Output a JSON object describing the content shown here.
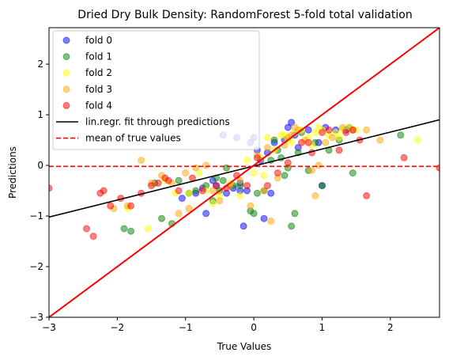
{
  "chart_data": {
    "type": "scatter",
    "title": "Dried Dry Bulk Density: RandomForest 5-fold total validation",
    "xlabel": "True Values",
    "ylabel": "Predictions",
    "xlim": [
      -3.0,
      2.72
    ],
    "ylim": [
      -3.0,
      2.72
    ],
    "xticks": [
      -3,
      -2,
      -1,
      0,
      1,
      2
    ],
    "yticks": [
      -3,
      -2,
      -1,
      0,
      1,
      2
    ],
    "xtick_labels": [
      "−3",
      "−2",
      "−1",
      "0",
      "1",
      "2"
    ],
    "ytick_labels": [
      "−3",
      "−2",
      "−1",
      "0",
      "1",
      "2"
    ],
    "grid": false,
    "legend_position": "top-left",
    "series": [
      {
        "name": "fold 0",
        "color": "#0000ff",
        "x": [
          -1.05,
          -0.85,
          -0.7,
          -0.55,
          -0.4,
          -0.3,
          -0.2,
          -0.15,
          -0.1,
          -0.05,
          0.0,
          0.05,
          0.1,
          0.15,
          0.2,
          0.3,
          0.45,
          0.55,
          0.65,
          0.8,
          0.95,
          1.05,
          1.2,
          1.35,
          -0.6,
          -0.2,
          0.25,
          0.5,
          -0.45,
          -0.25,
          0.6,
          1.0,
          -0.75
        ],
        "y": [
          -0.65,
          -0.55,
          -0.95,
          -0.4,
          -0.55,
          -0.45,
          -0.5,
          -1.2,
          -0.5,
          0.45,
          0.55,
          0.3,
          0.1,
          -1.05,
          0.25,
          0.45,
          0.5,
          0.85,
          0.35,
          0.7,
          0.45,
          0.75,
          0.7,
          0.7,
          -0.3,
          -0.35,
          -0.55,
          0.75,
          0.6,
          0.55,
          0.6,
          -0.4,
          -0.45
        ]
      },
      {
        "name": "fold 1",
        "color": "#008000",
        "x": [
          -1.9,
          -1.8,
          -1.45,
          -1.35,
          -1.2,
          -0.95,
          -0.7,
          -0.6,
          -0.55,
          -0.5,
          -0.45,
          -0.4,
          -0.3,
          -0.2,
          -0.05,
          0.0,
          0.05,
          0.15,
          0.3,
          0.4,
          0.5,
          0.55,
          0.6,
          0.65,
          0.7,
          0.8,
          0.9,
          1.0,
          1.1,
          1.25,
          1.4,
          1.45,
          2.15,
          -1.1,
          -0.85,
          0.35,
          0.45,
          0.25
        ],
        "y": [
          -1.25,
          -1.3,
          -0.35,
          -1.05,
          -1.15,
          -0.55,
          -0.4,
          -0.7,
          -0.25,
          -0.5,
          -0.3,
          -0.05,
          -0.4,
          -0.4,
          -0.9,
          -0.95,
          -0.55,
          -0.5,
          0.5,
          0.15,
          -0.05,
          -1.2,
          -0.95,
          0.25,
          0.65,
          -0.1,
          0.45,
          -0.4,
          0.3,
          0.5,
          0.75,
          -0.15,
          0.6,
          -0.3,
          -0.5,
          0.3,
          -0.2,
          0.1
        ]
      },
      {
        "name": "fold 2",
        "color": "#ffff00",
        "x": [
          -1.85,
          -1.55,
          -1.3,
          -1.15,
          -0.95,
          -0.8,
          -0.6,
          -0.5,
          -0.35,
          -0.2,
          -0.1,
          0.0,
          0.1,
          0.2,
          0.3,
          0.4,
          0.5,
          0.55,
          0.6,
          0.7,
          0.8,
          0.9,
          0.95,
          1.0,
          1.1,
          1.2,
          1.3,
          1.4,
          1.5,
          2.4,
          -0.7,
          0.15,
          0.45,
          0.85,
          1.25
        ],
        "y": [
          -0.85,
          -1.25,
          -0.3,
          -0.55,
          -0.55,
          -0.15,
          -0.75,
          -0.6,
          -0.35,
          -0.6,
          0.1,
          -0.15,
          0.15,
          0.55,
          0.3,
          0.6,
          0.5,
          0.45,
          0.65,
          0.7,
          0.55,
          0.65,
          0.75,
          0.7,
          0.6,
          0.65,
          0.7,
          0.75,
          0.7,
          0.5,
          -0.5,
          -0.2,
          0.6,
          0.4,
          0.55
        ]
      },
      {
        "name": "fold 3",
        "color": "#ffa500",
        "x": [
          -2.05,
          -1.85,
          -1.65,
          -1.5,
          -1.35,
          -1.2,
          -1.1,
          -0.95,
          -0.85,
          -0.7,
          -0.5,
          -0.35,
          -0.2,
          -0.05,
          0.05,
          0.15,
          0.25,
          0.35,
          0.45,
          0.55,
          0.6,
          0.65,
          0.75,
          0.85,
          0.95,
          1.05,
          1.15,
          1.3,
          1.45,
          1.65,
          1.85,
          -1.0,
          -0.6,
          0.2,
          0.5,
          0.9
        ],
        "y": [
          -0.85,
          -0.8,
          0.1,
          -0.35,
          -0.2,
          -0.35,
          -0.95,
          -0.85,
          -0.05,
          0.0,
          -0.7,
          -0.4,
          -0.3,
          -0.8,
          0.2,
          -0.5,
          -1.1,
          -0.25,
          0.4,
          0.6,
          0.75,
          0.7,
          0.5,
          -0.1,
          0.0,
          0.45,
          0.55,
          0.75,
          0.7,
          0.7,
          0.5,
          -0.15,
          -0.5,
          0.35,
          0.55,
          -0.6
        ]
      },
      {
        "name": "fold 4",
        "color": "#ff0000",
        "x": [
          -3.0,
          -2.45,
          -2.35,
          -2.25,
          -2.2,
          -2.1,
          -1.95,
          -1.8,
          -1.65,
          -1.5,
          -1.4,
          -1.25,
          -1.1,
          -0.9,
          -0.75,
          -0.55,
          -0.4,
          -0.25,
          -0.1,
          0.05,
          0.2,
          0.35,
          0.5,
          0.7,
          0.85,
          1.0,
          1.1,
          1.25,
          1.35,
          1.45,
          1.55,
          1.65,
          2.2,
          2.72,
          -1.3,
          0.8
        ],
        "y": [
          -0.45,
          -1.25,
          -1.4,
          -0.55,
          -0.5,
          -0.8,
          -0.65,
          -0.8,
          -0.55,
          -0.4,
          -0.35,
          -0.3,
          -0.5,
          -0.25,
          -0.5,
          -0.4,
          -0.45,
          -0.2,
          -0.4,
          0.15,
          -0.4,
          -0.15,
          0.05,
          0.45,
          0.25,
          0.65,
          0.7,
          0.3,
          0.65,
          0.7,
          0.5,
          -0.6,
          0.15,
          -0.05,
          -0.25,
          0.45
        ]
      }
    ],
    "lines": [
      {
        "name": "lin.regr. fit through predictions",
        "color": "#000000",
        "style": "solid",
        "x": [
          -3.0,
          2.72
        ],
        "y": [
          -1.02,
          0.9
        ]
      },
      {
        "name": "mean of true values",
        "color": "#ff0000",
        "style": "dashed",
        "x": [
          -3.0,
          2.72
        ],
        "y": [
          -0.02,
          -0.02
        ]
      },
      {
        "name": "",
        "color": "#ff0000",
        "style": "solid",
        "x": [
          -3.0,
          2.72
        ],
        "y": [
          -3.0,
          2.72
        ]
      }
    ]
  }
}
